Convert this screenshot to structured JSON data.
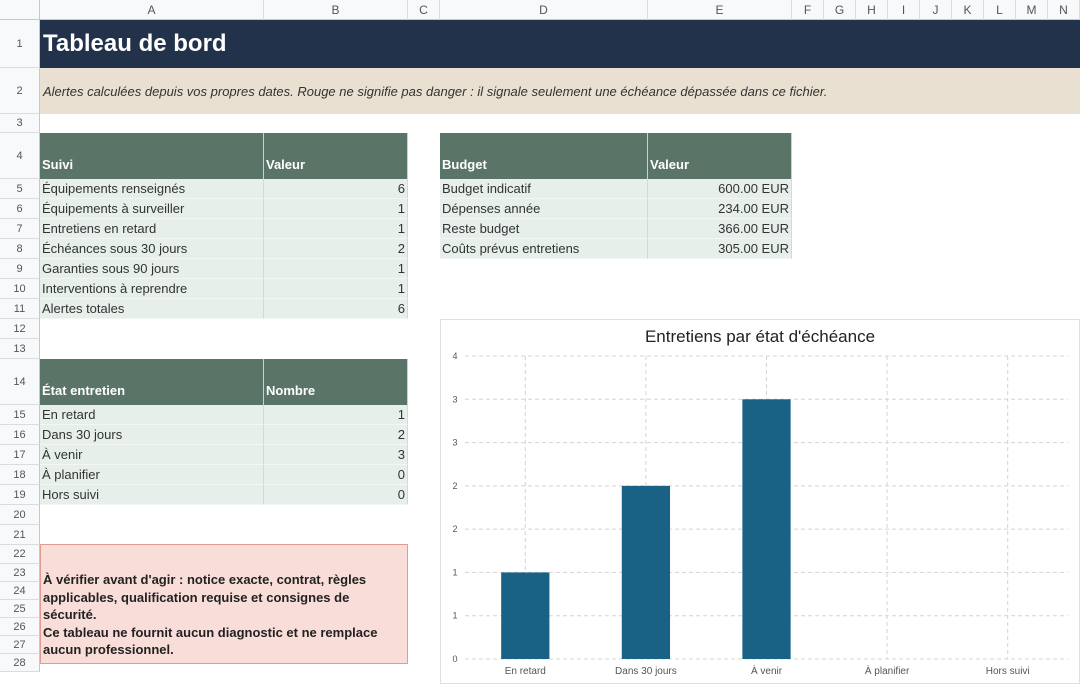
{
  "columns": [
    "A",
    "B",
    "C",
    "D",
    "E",
    "F",
    "G",
    "H",
    "I",
    "J",
    "K",
    "L",
    "M",
    "N"
  ],
  "rows": [
    "1",
    "2",
    "3",
    "4",
    "5",
    "6",
    "7",
    "8",
    "9",
    "10",
    "11",
    "12",
    "13",
    "14",
    "15",
    "16",
    "17",
    "18",
    "19",
    "20",
    "21",
    "22",
    "23",
    "24",
    "25",
    "26",
    "27",
    "28"
  ],
  "title": "Tableau de bord",
  "notice": "Alertes calculées depuis vos propres dates. Rouge ne signifie pas danger : il signale seulement une échéance dépassée dans ce fichier.",
  "suivi": {
    "headers": [
      "Suivi",
      "Valeur"
    ],
    "rows": [
      [
        "Équipements renseignés",
        "6"
      ],
      [
        "Équipements à surveiller",
        "1"
      ],
      [
        "Entretiens en retard",
        "1"
      ],
      [
        "Échéances sous 30 jours",
        "2"
      ],
      [
        "Garanties sous 90 jours",
        "1"
      ],
      [
        "Interventions à reprendre",
        "1"
      ],
      [
        "Alertes totales",
        "6"
      ]
    ]
  },
  "budget": {
    "headers": [
      "Budget",
      "Valeur"
    ],
    "rows": [
      [
        "Budget indicatif",
        "600.00 EUR"
      ],
      [
        "Dépenses année",
        "234.00 EUR"
      ],
      [
        "Reste budget",
        "366.00 EUR"
      ],
      [
        "Coûts prévus entretiens",
        "305.00 EUR"
      ]
    ]
  },
  "etat": {
    "headers": [
      "État entretien",
      "Nombre"
    ],
    "rows": [
      [
        "En retard",
        "1"
      ],
      [
        "Dans 30 jours",
        "2"
      ],
      [
        "À venir",
        "3"
      ],
      [
        "À planifier",
        "0"
      ],
      [
        "Hors suivi",
        "0"
      ]
    ]
  },
  "warning": {
    "lines": [
      "À vérifier avant d'agir : notice exacte, contrat, règles",
      "applicables, qualification requise et consignes de sécurité.",
      "Ce tableau ne fournit aucun diagnostic et ne remplace",
      "aucun professionnel."
    ]
  },
  "chart_data": {
    "type": "bar",
    "title": "Entretiens par état d'échéance",
    "categories": [
      "En retard",
      "Dans 30 jours",
      "À venir",
      "À planifier",
      "Hors suivi"
    ],
    "values": [
      1,
      2,
      3,
      0,
      0
    ],
    "ylim": [
      0,
      3.5
    ],
    "y_tick_labels": [
      "0",
      "1",
      "1",
      "2",
      "2",
      "3",
      "3",
      "4"
    ],
    "grid": true,
    "bar_color": "#1a6285"
  },
  "colors": {
    "banner": "#22324a",
    "notice_bg": "#e9e0d2",
    "table_header": "#5a7468",
    "table_cell": "#e6efea",
    "warning_bg": "#f8ddd8",
    "warning_border": "#e39c91"
  }
}
